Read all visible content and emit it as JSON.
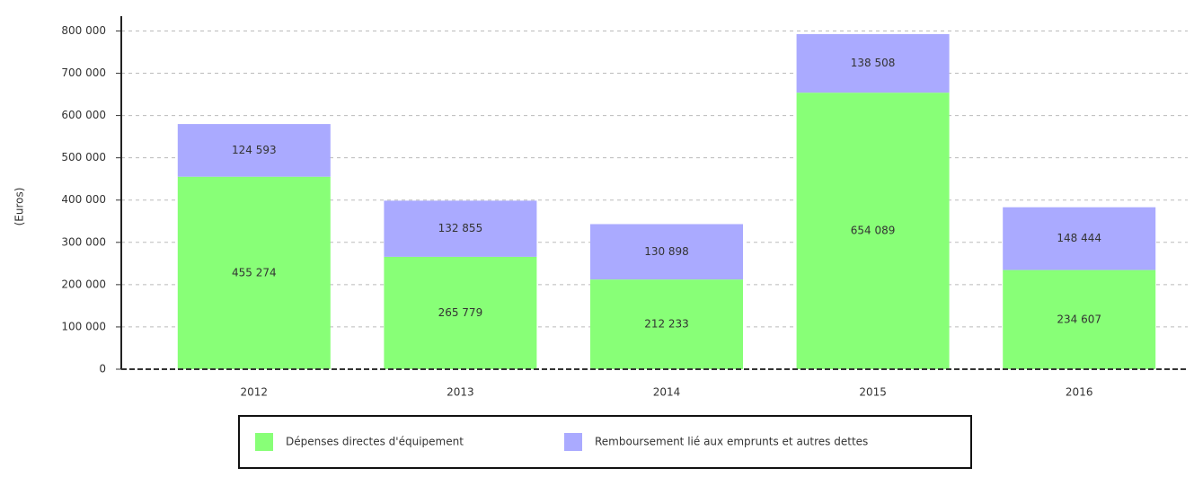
{
  "chart_data": {
    "type": "stacked_bar",
    "y_label": "(Euros)",
    "categories": [
      "2012",
      "2013",
      "2014",
      "2015",
      "2016"
    ],
    "series": [
      {
        "name": "Dépenses directes d'équipement",
        "color": "#88ff77",
        "values": [
          455274,
          265779,
          212233,
          654089,
          234607
        ],
        "value_labels": [
          "455 274",
          "265 779",
          "212 233",
          "654 089",
          "234 607"
        ]
      },
      {
        "name": "Remboursement lié aux emprunts et autres dettes",
        "color": "#aaaaff",
        "values": [
          124593,
          132855,
          130898,
          138508,
          148444
        ],
        "value_labels": [
          "124 593",
          "132 855",
          "130 898",
          "138 508",
          "148 444"
        ]
      }
    ],
    "ylim": [
      0,
      835000
    ],
    "yticks": [
      0,
      {
        "value": 100000,
        "label": "100 000"
      },
      {
        "value": 200000,
        "label": "200 000"
      },
      {
        "value": 300000,
        "label": "300 000"
      },
      {
        "value": 400000,
        "label": "400 000"
      },
      {
        "value": 500000,
        "label": "500 000"
      },
      {
        "value": 600000,
        "label": "600 000"
      },
      {
        "value": 700000,
        "label": "700 000"
      },
      {
        "value": 800000,
        "label": "800 000"
      }
    ],
    "grid": true,
    "legend": "bottom"
  }
}
